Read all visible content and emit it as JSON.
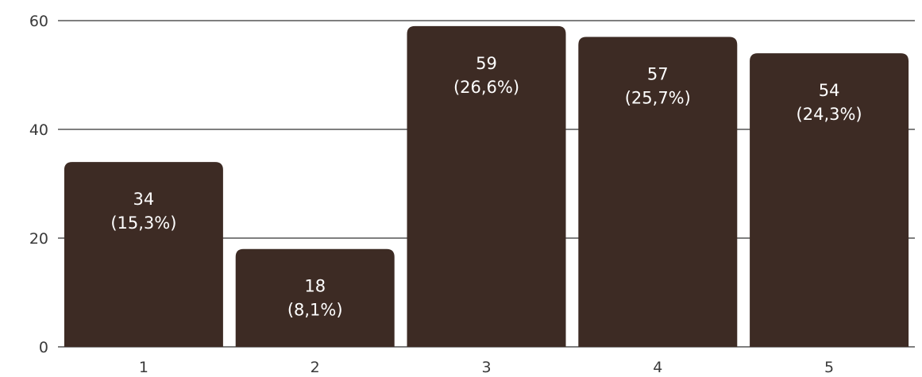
{
  "chart_data": {
    "type": "bar",
    "categories": [
      "1",
      "2",
      "3",
      "4",
      "5"
    ],
    "values": [
      34,
      18,
      59,
      57,
      54
    ],
    "value_labels": [
      "34",
      "18",
      "59",
      "57",
      "54"
    ],
    "percent_labels": [
      "(15,3%)",
      "(8,1%)",
      "(26,6%)",
      "(25,7%)",
      "(24,3%)"
    ],
    "y_ticks": [
      "0",
      "20",
      "40",
      "60"
    ],
    "ylim": [
      0,
      60
    ],
    "grid": true,
    "legend": "none",
    "colors": {
      "bar": "#3d2b24",
      "grid": "#333333",
      "bar_label": "#ffffff",
      "tick_label": "#3a3a3a"
    }
  }
}
